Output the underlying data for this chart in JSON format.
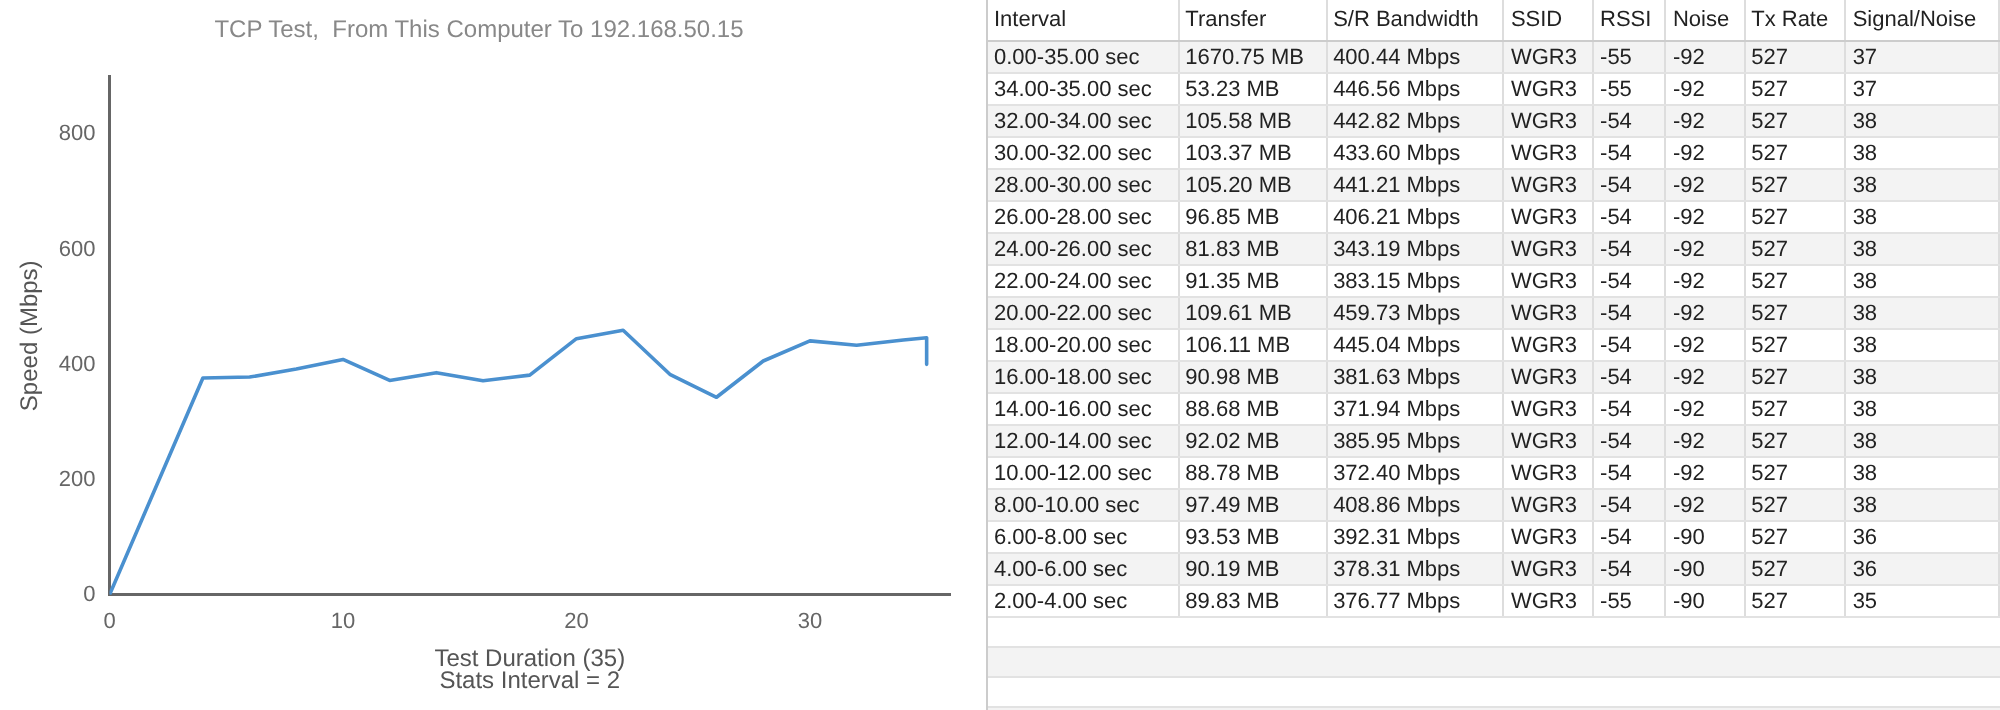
{
  "chart_data": [
    {
      "type": "line",
      "title": "TCP Test,  From This Computer To 192.168.50.15",
      "xlabel": "Test Duration (35)",
      "ylabel": "Speed (Mbps)",
      "annotations": [
        "Stats Interval = 2"
      ],
      "series": [
        {
          "color": "#4a90cf",
          "x": [
            0,
            4,
            6,
            8,
            10,
            12,
            14,
            16,
            18,
            20,
            22,
            24,
            26,
            28,
            30,
            32,
            34,
            35,
            35
          ],
          "values": [
            0,
            376.77,
            378.31,
            392.31,
            408.86,
            372.4,
            385.95,
            371.94,
            381.63,
            445.04,
            459.73,
            383.15,
            343.19,
            406.21,
            441.21,
            433.6,
            442.82,
            446.56,
            400.44
          ]
        }
      ],
      "xlim": [
        0,
        36
      ],
      "xticks": [
        0,
        10,
        20,
        30
      ],
      "ylim": [
        0,
        900
      ],
      "yticks": [
        0,
        200,
        400,
        600,
        800
      ],
      "grid": false,
      "legend": false,
      "marker": "none",
      "line_style": "solid"
    },
    {
      "type": "other",
      "categories": [
        "Interval",
        "Transfer",
        "S/R Bandwidth",
        "SSID",
        "RSSI",
        "Noise",
        "Tx Rate",
        "Signal/Noise"
      ],
      "annotations": [
        "0.00-35.00 sec",
        "1670.75 MB",
        "400.44 Mbps",
        "WGR3",
        "-55",
        "-92",
        "527",
        "37",
        "34.00-35.00 sec",
        "53.23 MB",
        "446.56 Mbps",
        "WGR3",
        "-55",
        "-92",
        "527",
        "37",
        "32.00-34.00 sec",
        "105.58 MB",
        "442.82 Mbps",
        "WGR3",
        "-54",
        "-92",
        "527",
        "38",
        "30.00-32.00 sec",
        "103.37 MB",
        "433.60 Mbps",
        "WGR3",
        "-54",
        "-92",
        "527",
        "38",
        "28.00-30.00 sec",
        "105.20 MB",
        "441.21 Mbps",
        "WGR3",
        "-54",
        "-92",
        "527",
        "38",
        "26.00-28.00 sec",
        "96.85 MB",
        "406.21 Mbps",
        "WGR3",
        "-54",
        "-92",
        "527",
        "38",
        "24.00-26.00 sec",
        "81.83 MB",
        "343.19 Mbps",
        "WGR3",
        "-54",
        "-92",
        "527",
        "38",
        "22.00-24.00 sec",
        "91.35 MB",
        "383.15 Mbps",
        "WGR3",
        "-54",
        "-92",
        "527",
        "38",
        "20.00-22.00 sec",
        "109.61 MB",
        "459.73 Mbps",
        "WGR3",
        "-54",
        "-92",
        "527",
        "38",
        "18.00-20.00 sec",
        "106.11 MB",
        "445.04 Mbps",
        "WGR3",
        "-54",
        "-92",
        "527",
        "38",
        "16.00-18.00 sec",
        "90.98 MB",
        "381.63 Mbps",
        "WGR3",
        "-54",
        "-92",
        "527",
        "38",
        "14.00-16.00 sec",
        "88.68 MB",
        "371.94 Mbps",
        "WGR3",
        "-54",
        "-92",
        "527",
        "38",
        "12.00-14.00 sec",
        "92.02 MB",
        "385.95 Mbps",
        "WGR3",
        "-54",
        "-92",
        "527",
        "38",
        "10.00-12.00 sec",
        "88.78 MB",
        "372.40 Mbps",
        "WGR3",
        "-54",
        "-92",
        "527",
        "38",
        "8.00-10.00 sec",
        "97.49 MB",
        "408.86 Mbps",
        "WGR3",
        "-54",
        "-92",
        "527",
        "38",
        "6.00-8.00 sec",
        "93.53 MB",
        "392.31 Mbps",
        "WGR3",
        "-54",
        "-90",
        "527",
        "36",
        "4.00-6.00 sec",
        "90.19 MB",
        "378.31 Mbps",
        "WGR3",
        "-54",
        "-90",
        "527",
        "36",
        "2.00-4.00 sec",
        "89.83 MB",
        "376.77 Mbps",
        "WGR3",
        "-55",
        "-90",
        "527",
        "35"
      ]
    }
  ]
}
